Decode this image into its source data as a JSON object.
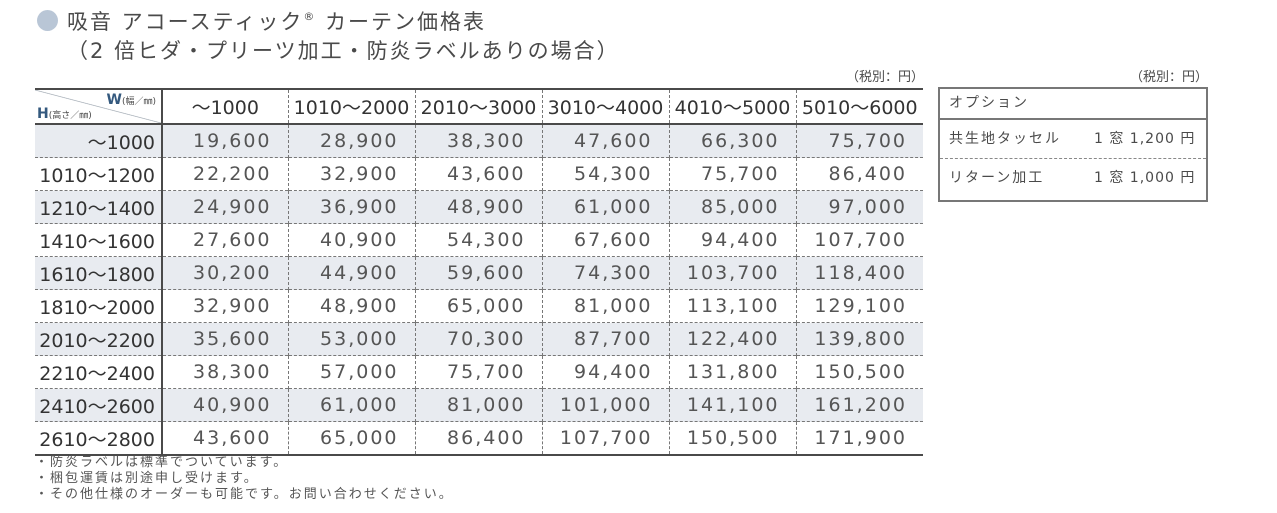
{
  "title": {
    "line1": "吸音 アコースティック",
    "reg_mark": "®",
    "line1_suffix": " カーテン価格表",
    "line2": "（2 倍ヒダ・プリーツ加工・防炎ラベルありの場合）"
  },
  "tax_note_main": "（税別：円）",
  "tax_note_option": "（税別：円）",
  "corner": {
    "w_label": "W",
    "w_unit": "(幅／㎜)",
    "h_label": "H",
    "h_unit": "(高さ／㎜)"
  },
  "columns": [
    "～1000",
    "1010～2000",
    "2010～3000",
    "3010～4000",
    "4010～5000",
    "5010～6000"
  ],
  "rows": [
    {
      "height": "～1000",
      "prices": [
        "19,600",
        "28,900",
        "38,300",
        "47,600",
        "66,300",
        "75,700"
      ]
    },
    {
      "height": "1010～1200",
      "prices": [
        "22,200",
        "32,900",
        "43,600",
        "54,300",
        "75,700",
        "86,400"
      ]
    },
    {
      "height": "1210～1400",
      "prices": [
        "24,900",
        "36,900",
        "48,900",
        "61,000",
        "85,000",
        "97,000"
      ]
    },
    {
      "height": "1410～1600",
      "prices": [
        "27,600",
        "40,900",
        "54,300",
        "67,600",
        "94,400",
        "107,700"
      ]
    },
    {
      "height": "1610～1800",
      "prices": [
        "30,200",
        "44,900",
        "59,600",
        "74,300",
        "103,700",
        "118,400"
      ]
    },
    {
      "height": "1810～2000",
      "prices": [
        "32,900",
        "48,900",
        "65,000",
        "81,000",
        "113,100",
        "129,100"
      ]
    },
    {
      "height": "2010～2200",
      "prices": [
        "35,600",
        "53,000",
        "70,300",
        "87,700",
        "122,400",
        "139,800"
      ]
    },
    {
      "height": "2210～2400",
      "prices": [
        "38,300",
        "57,000",
        "75,700",
        "94,400",
        "131,800",
        "150,500"
      ]
    },
    {
      "height": "2410～2600",
      "prices": [
        "40,900",
        "61,000",
        "81,000",
        "101,000",
        "141,100",
        "161,200"
      ]
    },
    {
      "height": "2610～2800",
      "prices": [
        "43,600",
        "65,000",
        "86,400",
        "107,700",
        "150,500",
        "171,900"
      ]
    }
  ],
  "options": {
    "header": "オプション",
    "items": [
      {
        "name": "共生地タッセル",
        "price": "1 窓 1,200 円"
      },
      {
        "name": "リターン加工",
        "price": "1 窓 1,000 円"
      }
    ]
  },
  "notes": [
    "・防炎ラベルは標準でついています。",
    "・梱包運賃は別途申し受けます。",
    "・その他仕様のオーダーも可能です。お問い合わせください。"
  ],
  "colors": {
    "bullet_dot": "#b9c6d6",
    "row_shade": "#e8ebf0",
    "corner_label": "#34597e"
  }
}
